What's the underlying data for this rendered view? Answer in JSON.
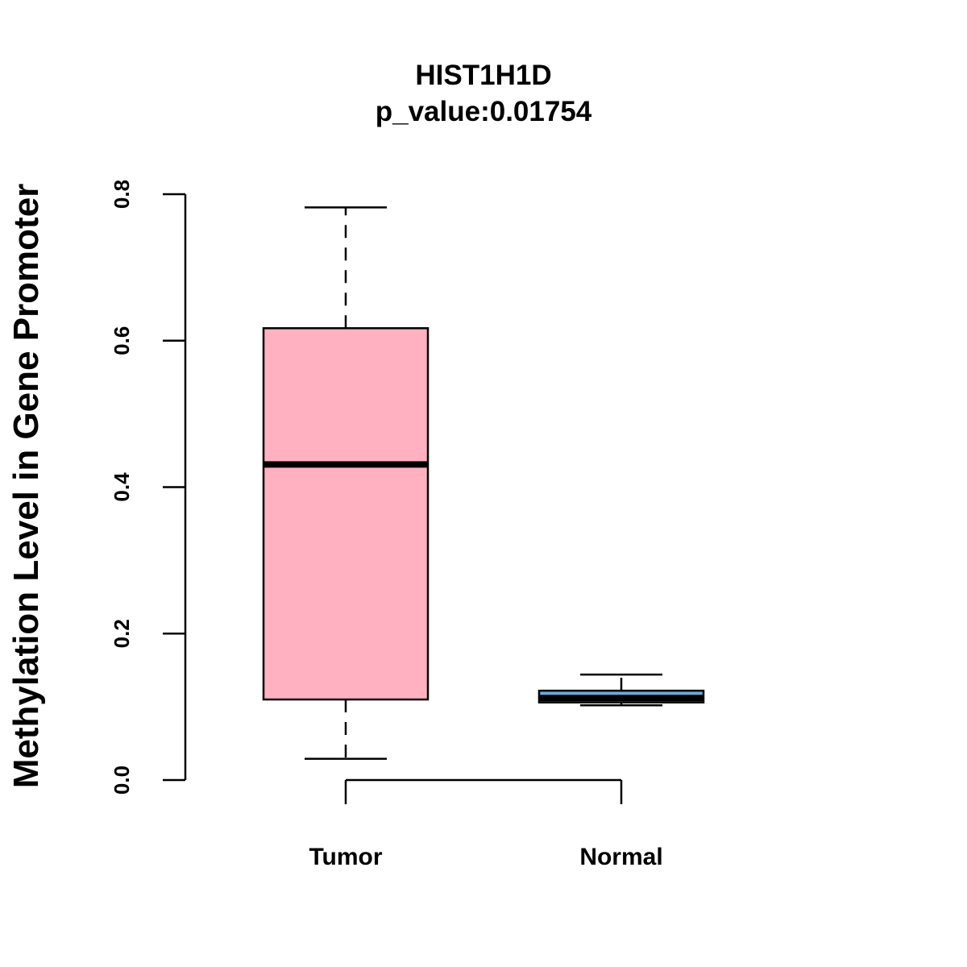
{
  "chart_data": {
    "type": "box",
    "title": "HIST1H1D",
    "subtitle": "p_value:0.01754",
    "xlabel": "",
    "ylabel": "Methylation Level in Gene Promoter",
    "ylim": [
      0.0,
      0.8
    ],
    "yticks": [
      "0.0",
      "0.2",
      "0.4",
      "0.6",
      "0.8"
    ],
    "ytick_values": [
      0.0,
      0.2,
      0.4,
      0.6,
      0.8
    ],
    "grid": false,
    "categories": [
      "Tumor",
      "Normal"
    ],
    "boxes": [
      {
        "name": "Tumor",
        "whisker_low": 0.029,
        "q1": 0.11,
        "median": 0.431,
        "q3": 0.617,
        "whisker_high": 0.782,
        "fill": "#FFB1C2",
        "median_color": "#000000"
      },
      {
        "name": "Normal",
        "whisker_low": 0.102,
        "q1": 0.106,
        "median": 0.112,
        "q3": 0.122,
        "whisker_high": 0.144,
        "fill": "#6FA8DC",
        "median_color": "#000000"
      }
    ]
  }
}
